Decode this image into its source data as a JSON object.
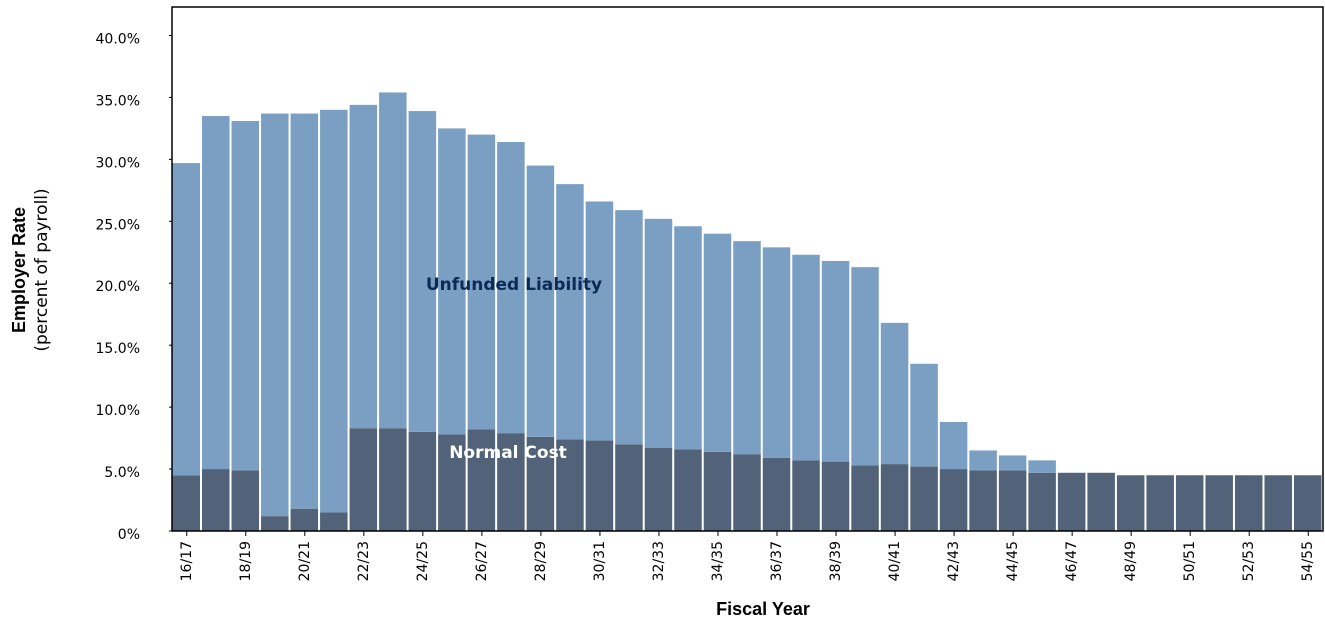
{
  "chart_data": {
    "type": "stacked_bar",
    "x_label": "Fiscal Year",
    "y_label": "Employer Rate",
    "y_sublabel": "(percent of payroll)",
    "categories": [
      "16/17",
      null,
      "18/19",
      null,
      "20/21",
      null,
      "22/23",
      null,
      "24/25",
      null,
      "26/27",
      null,
      "28/29",
      null,
      "30/31",
      null,
      "32/33",
      null,
      "34/35",
      null,
      "36/37",
      null,
      "38/39",
      null,
      "40/41",
      null,
      "42/43",
      null,
      "44/45",
      null,
      "46/47",
      null,
      "48/49",
      null,
      "50/51",
      null,
      "52/53",
      null,
      "54/55"
    ],
    "series": [
      {
        "name": "Normal Cost",
        "color": "#526278",
        "label_color": "#ffffff",
        "values": [
          4.5,
          5.0,
          4.9,
          1.2,
          1.8,
          1.5,
          8.3,
          8.3,
          8.0,
          7.8,
          8.2,
          7.9,
          7.6,
          7.4,
          7.3,
          7.0,
          6.7,
          6.6,
          6.4,
          6.2,
          5.9,
          5.7,
          5.6,
          5.3,
          5.4,
          5.2,
          5.0,
          4.9,
          4.9,
          4.7,
          4.7,
          4.7,
          4.5,
          4.5,
          4.5,
          4.5,
          4.5,
          4.5,
          4.5
        ]
      },
      {
        "name": "Unfunded Liability",
        "color": "#7b9fc3",
        "label_color": "#0b2a55",
        "values": [
          25.2,
          28.5,
          28.2,
          32.5,
          31.9,
          32.5,
          26.1,
          27.1,
          25.9,
          24.7,
          23.8,
          23.5,
          21.9,
          20.6,
          19.3,
          18.9,
          18.5,
          18.0,
          17.6,
          17.2,
          17.0,
          16.6,
          16.2,
          16.0,
          11.4,
          8.3,
          3.8,
          1.6,
          1.2,
          1.0,
          0,
          0,
          0,
          0,
          0,
          0,
          0,
          0,
          0
        ]
      }
    ],
    "ylim": [
      0,
      42.3
    ],
    "yticks": [
      {
        "value": 0,
        "label": "0%"
      },
      {
        "value": 5,
        "label": "5.0%"
      },
      {
        "value": 10,
        "label": "10.0%"
      },
      {
        "value": 15,
        "label": "15.0%"
      },
      {
        "value": 20,
        "label": "20.0%"
      },
      {
        "value": 25,
        "label": "25.0%"
      },
      {
        "value": 30,
        "label": "30.0%"
      },
      {
        "value": 35,
        "label": "35.0%"
      },
      {
        "value": 40,
        "label": "40.0%"
      }
    ],
    "grid": false
  }
}
